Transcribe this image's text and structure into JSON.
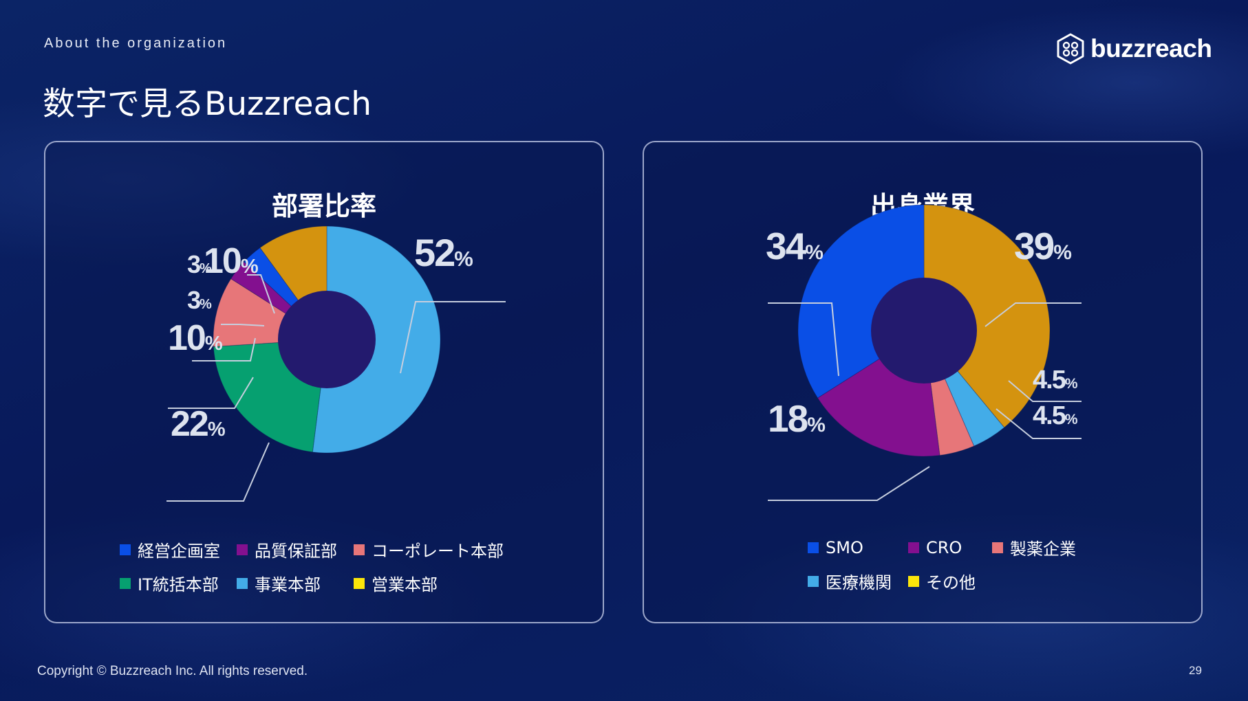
{
  "header": {
    "subtitle": "About the organization",
    "title": "数字で見るBuzzreach",
    "logo_text": "buzzreach"
  },
  "footer": {
    "copyright": "Copyright © Buzzreach Inc. All rights reserved.",
    "page_number": "29"
  },
  "colors": {
    "background": "#0a2060",
    "donut_hole": "#231a6e",
    "leader_line": "#c6cede"
  },
  "chart_data": [
    {
      "type": "pie",
      "title": "部署比率",
      "unit": "%",
      "slices": [
        {
          "label": "事業本部",
          "value": 52,
          "display": "52",
          "color": "#43ace8"
        },
        {
          "label": "IT統括本部",
          "value": 22,
          "display": "22",
          "color": "#06a070"
        },
        {
          "label": "コーポレート本部",
          "value": 10,
          "display": "10",
          "color": "#e77679"
        },
        {
          "label": "品質保証部",
          "value": 3,
          "display": "3",
          "color": "#83108f"
        },
        {
          "label": "経営企画室",
          "value": 3,
          "display": "3",
          "color": "#0a4fe6"
        },
        {
          "label": "営業本部",
          "value": 10,
          "display": "10",
          "color": "#d4930f"
        }
      ],
      "legend": [
        {
          "label": "経営企画室",
          "color": "#0a4fe6"
        },
        {
          "label": "品質保証部",
          "color": "#83108f"
        },
        {
          "label": "コーポレート本部",
          "color": "#e77679"
        },
        {
          "label": "IT統括本部",
          "color": "#06a070"
        },
        {
          "label": "事業本部",
          "color": "#43ace8"
        },
        {
          "label": "営業本部",
          "color": "#fce60a"
        }
      ]
    },
    {
      "type": "pie",
      "title": "出身業界",
      "unit": "%",
      "slices": [
        {
          "label": "その他",
          "value": 39,
          "display": "39",
          "color": "#d4930f"
        },
        {
          "label": "医療機関",
          "value": 4.5,
          "display": "4.5",
          "color": "#43ace8"
        },
        {
          "label": "製薬企業",
          "value": 4.5,
          "display": "4.5",
          "color": "#e77679"
        },
        {
          "label": "CRO",
          "value": 18,
          "display": "18",
          "color": "#83108f"
        },
        {
          "label": "SMO",
          "value": 34,
          "display": "34",
          "color": "#0a4fe6"
        }
      ],
      "legend": [
        {
          "label": "SMO",
          "color": "#0a4fe6"
        },
        {
          "label": "CRO",
          "color": "#83108f"
        },
        {
          "label": "製薬企業",
          "color": "#e77679"
        },
        {
          "label": "医療機関",
          "color": "#43ace8"
        },
        {
          "label": "その他",
          "color": "#fce60a"
        }
      ]
    }
  ]
}
